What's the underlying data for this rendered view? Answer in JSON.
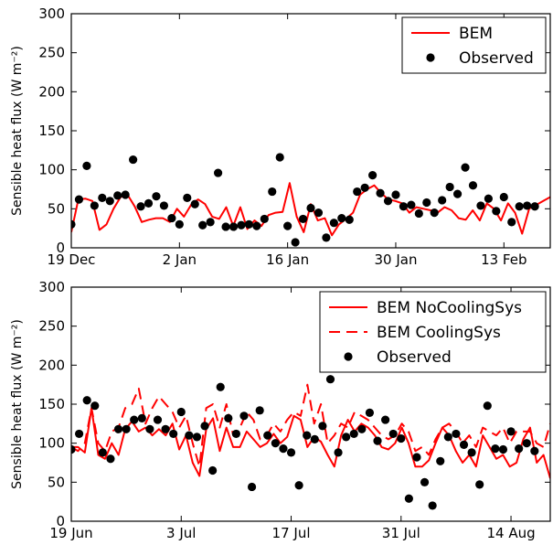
{
  "chart_data": [
    {
      "type": "line",
      "ylabel": "Sensible heat flux (W m⁻²)",
      "ylim": [
        0,
        300
      ],
      "yticks": [
        0,
        50,
        100,
        150,
        200,
        250,
        300
      ],
      "xlim": [
        "2012-12-19",
        "2013-02-19"
      ],
      "xticks": [
        {
          "label": "19 Dec",
          "date": "2012-12-19"
        },
        {
          "label": "2 Jan",
          "date": "2013-01-02"
        },
        {
          "label": "16 Jan",
          "date": "2013-01-16"
        },
        {
          "label": "30 Jan",
          "date": "2013-01-30"
        },
        {
          "label": "13 Feb",
          "date": "2013-02-13"
        }
      ],
      "legend_position": "top-right",
      "start_date": "2012-12-19",
      "series": [
        {
          "name": "BEM",
          "style": "solid",
          "color": "#ff0000",
          "values": [
            20,
            62,
            63,
            60,
            23,
            30,
            50,
            65,
            68,
            53,
            33,
            36,
            38,
            38,
            33,
            50,
            40,
            55,
            62,
            56,
            40,
            37,
            52,
            28,
            52,
            24,
            35,
            28,
            42,
            45,
            46,
            83,
            40,
            20,
            56,
            35,
            38,
            16,
            30,
            37,
            45,
            68,
            75,
            80,
            70,
            62,
            60,
            57,
            45,
            52,
            50,
            48,
            45,
            52,
            48,
            38,
            36,
            48,
            35,
            57,
            50,
            35,
            57,
            45,
            18,
            50,
            55,
            60,
            65
          ]
        },
        {
          "name": "Observed",
          "style": "marker",
          "color": "#000000",
          "points": [
            [
              0,
              30
            ],
            [
              1,
              62
            ],
            [
              2,
              105
            ],
            [
              3,
              54
            ],
            [
              4,
              64
            ],
            [
              5,
              60
            ],
            [
              6,
              67
            ],
            [
              7,
              68
            ],
            [
              8,
              113
            ],
            [
              9,
              53
            ],
            [
              10,
              57
            ],
            [
              11,
              66
            ],
            [
              12,
              54
            ],
            [
              13,
              38
            ],
            [
              14,
              30
            ],
            [
              15,
              64
            ],
            [
              16,
              56
            ],
            [
              17,
              29
            ],
            [
              18,
              33
            ],
            [
              19,
              96
            ],
            [
              20,
              27
            ],
            [
              21,
              27
            ],
            [
              22,
              29
            ],
            [
              23,
              30
            ],
            [
              24,
              28
            ],
            [
              25,
              37
            ],
            [
              26,
              72
            ],
            [
              27,
              116
            ],
            [
              28,
              28
            ],
            [
              29,
              7
            ],
            [
              30,
              37
            ],
            [
              31,
              51
            ],
            [
              32,
              45
            ],
            [
              33,
              13
            ],
            [
              34,
              32
            ],
            [
              35,
              38
            ],
            [
              36,
              36
            ],
            [
              37,
              72
            ],
            [
              38,
              77
            ],
            [
              39,
              93
            ],
            [
              40,
              70
            ],
            [
              41,
              60
            ],
            [
              42,
              68
            ],
            [
              43,
              53
            ],
            [
              44,
              55
            ],
            [
              45,
              44
            ],
            [
              46,
              58
            ],
            [
              47,
              45
            ],
            [
              48,
              61
            ],
            [
              49,
              78
            ],
            [
              50,
              69
            ],
            [
              51,
              103
            ],
            [
              52,
              80
            ],
            [
              53,
              54
            ],
            [
              54,
              63
            ],
            [
              55,
              47
            ],
            [
              56,
              65
            ],
            [
              57,
              33
            ],
            [
              58,
              53
            ],
            [
              59,
              54
            ],
            [
              60,
              53
            ]
          ]
        }
      ]
    },
    {
      "type": "line",
      "ylabel": "Sensible heat flux (W m⁻²)",
      "ylim": [
        0,
        300
      ],
      "yticks": [
        0,
        50,
        100,
        150,
        200,
        250,
        300
      ],
      "xlim": [
        "2013-06-19",
        "2013-08-19"
      ],
      "xticks": [
        {
          "label": "19 Jun",
          "date": "2013-06-19"
        },
        {
          "label": "3 Jul",
          "date": "2013-07-03"
        },
        {
          "label": "17 Jul",
          "date": "2013-07-17"
        },
        {
          "label": "31 Jul",
          "date": "2013-07-31"
        },
        {
          "label": "14 Aug",
          "date": "2013-08-14"
        }
      ],
      "legend_position": "top-right",
      "start_date": "2013-06-19",
      "series": [
        {
          "name": "BEM NoCoolingSys",
          "style": "solid",
          "color": "#ff0000",
          "values": [
            95,
            95,
            88,
            145,
            85,
            80,
            100,
            85,
            118,
            128,
            115,
            120,
            110,
            118,
            110,
            125,
            92,
            110,
            75,
            58,
            118,
            132,
            90,
            120,
            95,
            95,
            115,
            105,
            95,
            100,
            112,
            100,
            108,
            135,
            130,
            95,
            108,
            102,
            85,
            70,
            110,
            130,
            115,
            125,
            120,
            110,
            95,
            92,
            100,
            120,
            100,
            70,
            70,
            78,
            100,
            120,
            110,
            90,
            75,
            85,
            70,
            110,
            95,
            80,
            85,
            70,
            75,
            105,
            120,
            75,
            85,
            55
          ]
        },
        {
          "name": "BEM CoolingSys",
          "style": "dashed",
          "color": "#ff0000",
          "values": [
            95,
            90,
            100,
            145,
            100,
            90,
            115,
            120,
            145,
            150,
            170,
            125,
            145,
            160,
            150,
            140,
            120,
            135,
            100,
            70,
            145,
            150,
            120,
            150,
            110,
            120,
            140,
            130,
            105,
            110,
            125,
            115,
            130,
            140,
            135,
            175,
            125,
            150,
            100,
            110,
            125,
            120,
            140,
            135,
            130,
            120,
            110,
            105,
            110,
            125,
            115,
            90,
            95,
            85,
            105,
            120,
            125,
            115,
            100,
            110,
            95,
            120,
            115,
            110,
            120,
            100,
            115,
            115,
            115,
            100,
            95,
            125
          ]
        },
        {
          "name": "Observed",
          "style": "marker",
          "color": "#000000",
          "points": [
            [
              0,
              92
            ],
            [
              1,
              112
            ],
            [
              2,
              155
            ],
            [
              3,
              148
            ],
            [
              4,
              88
            ],
            [
              5,
              80
            ],
            [
              6,
              118
            ],
            [
              7,
              118
            ],
            [
              8,
              130
            ],
            [
              9,
              132
            ],
            [
              10,
              118
            ],
            [
              11,
              130
            ],
            [
              12,
              118
            ],
            [
              13,
              112
            ],
            [
              14,
              140
            ],
            [
              15,
              110
            ],
            [
              16,
              108
            ],
            [
              17,
              122
            ],
            [
              18,
              65
            ],
            [
              19,
              172
            ],
            [
              20,
              132
            ],
            [
              21,
              112
            ],
            [
              22,
              135
            ],
            [
              23,
              44
            ],
            [
              24,
              142
            ],
            [
              25,
              110
            ],
            [
              26,
              100
            ],
            [
              27,
              93
            ],
            [
              28,
              88
            ],
            [
              29,
              46
            ],
            [
              30,
              110
            ],
            [
              31,
              105
            ],
            [
              32,
              122
            ],
            [
              33,
              182
            ],
            [
              34,
              88
            ],
            [
              35,
              108
            ],
            [
              36,
              112
            ],
            [
              37,
              118
            ],
            [
              38,
              139
            ],
            [
              39,
              103
            ],
            [
              40,
              130
            ],
            [
              41,
              112
            ],
            [
              42,
              106
            ],
            [
              43,
              29
            ],
            [
              44,
              82
            ],
            [
              45,
              50
            ],
            [
              46,
              20
            ],
            [
              47,
              77
            ],
            [
              48,
              108
            ],
            [
              49,
              112
            ],
            [
              50,
              98
            ],
            [
              51,
              88
            ],
            [
              52,
              47
            ],
            [
              53,
              148
            ],
            [
              54,
              93
            ],
            [
              55,
              92
            ],
            [
              56,
              115
            ],
            [
              57,
              93
            ],
            [
              58,
              100
            ],
            [
              59,
              90
            ]
          ]
        }
      ]
    }
  ]
}
